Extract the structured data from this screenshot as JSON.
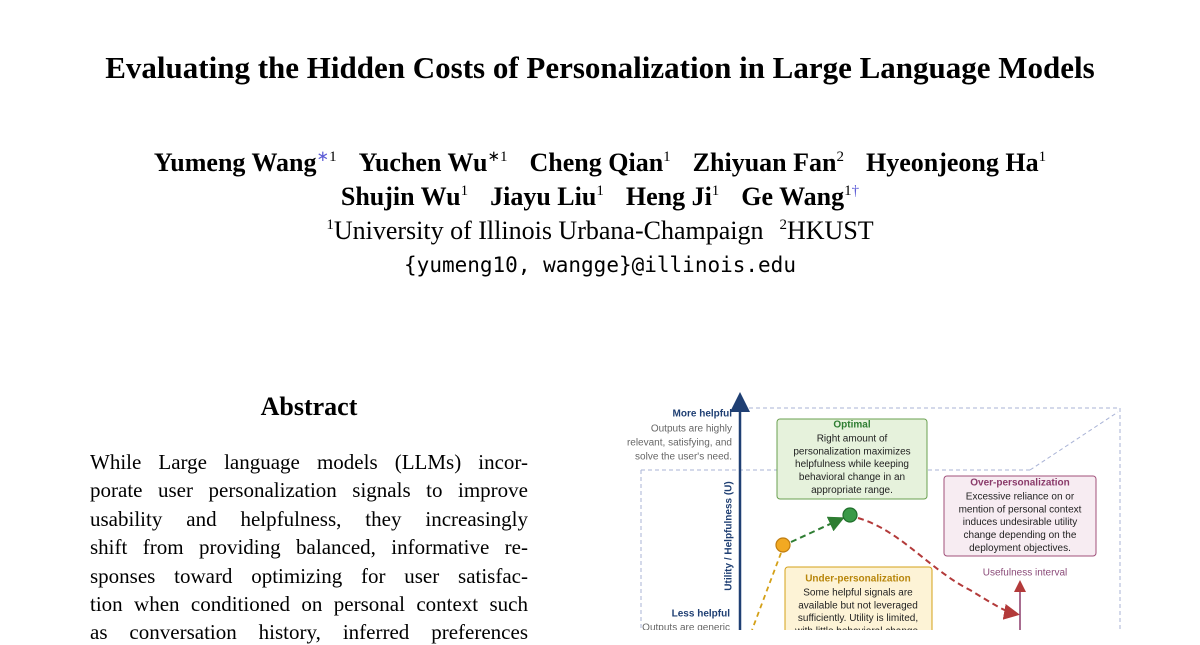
{
  "title": "Evaluating the Hidden Costs of Personalization in Large Language Models",
  "author_lines": [
    [
      {
        "name": "Yumeng Wang",
        "symbol": "∗",
        "symbol_color": "#5b5bd6",
        "affiliation": "1"
      },
      {
        "name": "Yuchen Wu",
        "symbol": "∗",
        "symbol_color": "#000000",
        "affiliation": "1"
      },
      {
        "name": "Cheng Qian",
        "affiliation": "1"
      },
      {
        "name": "Zhiyuan Fan",
        "affiliation": "2"
      },
      {
        "name": "Hyeonjeong Ha",
        "affiliation": "1"
      }
    ],
    [
      {
        "name": "Shujin Wu",
        "affiliation": "1"
      },
      {
        "name": "Jiayu Liu",
        "affiliation": "1"
      },
      {
        "name": "Heng Ji",
        "affiliation": "1"
      },
      {
        "name": "Ge Wang",
        "affiliation": "1",
        "symbol_after": "†",
        "symbol_color": "#5b5bd6"
      }
    ]
  ],
  "affiliations": [
    {
      "sup": "1",
      "name": "University of Illinois Urbana-Champaign"
    },
    {
      "sup": "2",
      "name": "HKUST"
    }
  ],
  "email": "{yumeng10, wangge}@illinois.edu",
  "abstract": {
    "heading": "Abstract",
    "lines": [
      "While Large language models (LLMs) incor-",
      "porate user personalization signals to improve",
      "usability and helpfulness, they increasingly",
      "shift from providing balanced, informative re-",
      "sponses toward optimizing for user satisfac-",
      "tion when conditioned on personal context such",
      "as conversation history, inferred preferences"
    ]
  },
  "figure": {
    "y_axis_label": "Utility / Helpfulness (U)",
    "top": {
      "label": "More helpful",
      "lines": [
        "Outputs are highly",
        "relevant, satisfying, and",
        "solve the user's need."
      ]
    },
    "bottom": {
      "label": "Less helpful",
      "lines": [
        "Outputs are generic"
      ]
    },
    "optimal": {
      "title": "Optimal",
      "lines": [
        "Right amount of",
        "personalization maximizes",
        "helpfulness while keeping",
        "behavioral change in an",
        "appropriate range."
      ]
    },
    "over": {
      "title": "Over-personalization",
      "lines": [
        "Excessive reliance on or",
        "mention of personal context",
        "induces undesirable utility",
        "change depending on the",
        "deployment objectives."
      ]
    },
    "under": {
      "title": "Under-personalization",
      "lines": [
        "Some helpful signals are",
        "available but not leveraged",
        "sufficiently. Utility is limited,",
        "with little behavioral change."
      ]
    },
    "interval_label": "Usefulness interval"
  }
}
